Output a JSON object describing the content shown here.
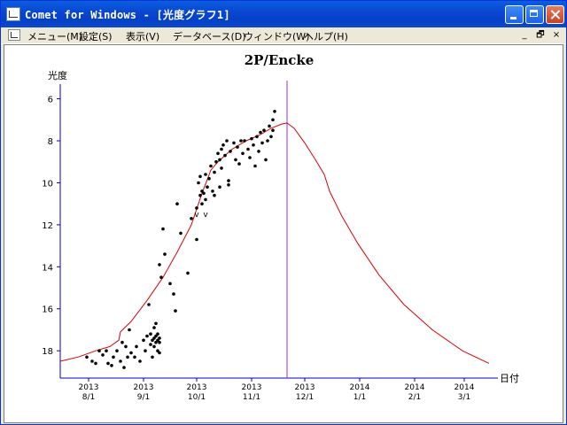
{
  "window": {
    "title": "Comet for Windows - [光度グラフ1]",
    "accent": "#0a47d0"
  },
  "menu": {
    "items": [
      "メニュー(M)",
      "設定(S)",
      "表示(V)",
      "データベース(D)",
      "ウィンドウ(W)",
      "ヘルプ(H)"
    ],
    "mdi_controls": [
      "_",
      "🗗",
      "×"
    ]
  },
  "chart_data": {
    "type": "scatter",
    "title": "2P/Encke",
    "xlabel": "日付",
    "ylabel": "光度",
    "y_reversed": true,
    "ylim": [
      19.3,
      5.3
    ],
    "y_ticks": [
      6,
      8,
      10,
      12,
      14,
      16,
      18
    ],
    "xlim": [
      "2013-07-16",
      "2014-03-20"
    ],
    "x_ticks": [
      {
        "date": "2013-08-01",
        "year": "2013",
        "label": "8/1"
      },
      {
        "date": "2013-09-01",
        "year": "2013",
        "label": "9/1"
      },
      {
        "date": "2013-10-01",
        "year": "2013",
        "label": "10/1"
      },
      {
        "date": "2013-11-01",
        "year": "2013",
        "label": "11/1"
      },
      {
        "date": "2013-12-01",
        "year": "2013",
        "label": "12/1"
      },
      {
        "date": "2014-01-01",
        "year": "2014",
        "label": "1/1"
      },
      {
        "date": "2014-02-01",
        "year": "2014",
        "label": "2/1"
      },
      {
        "date": "2014-03-01",
        "year": "2014",
        "label": "3/1"
      }
    ],
    "marker_line": {
      "date": "2013-11-21",
      "color": "#9933cc"
    },
    "curve_color": "#dd0000",
    "point_color": "#000000",
    "predicted_curve": [
      {
        "x": "2013-07-16",
        "y": 18.5
      },
      {
        "x": "2013-07-26",
        "y": 18.3
      },
      {
        "x": "2013-08-05",
        "y": 18.0
      },
      {
        "x": "2013-08-13",
        "y": 17.8
      },
      {
        "x": "2013-08-18",
        "y": 17.5
      },
      {
        "x": "2013-08-19",
        "y": 17.1
      },
      {
        "x": "2013-08-25",
        "y": 16.6
      },
      {
        "x": "2013-09-03",
        "y": 15.6
      },
      {
        "x": "2013-09-12",
        "y": 14.5
      },
      {
        "x": "2013-09-20",
        "y": 13.3
      },
      {
        "x": "2013-09-28",
        "y": 12.0
      },
      {
        "x": "2013-10-04",
        "y": 10.5
      },
      {
        "x": "2013-10-09",
        "y": 9.4
      },
      {
        "x": "2013-10-13",
        "y": 9.0
      },
      {
        "x": "2013-10-21",
        "y": 8.4
      },
      {
        "x": "2013-10-29",
        "y": 8.0
      },
      {
        "x": "2013-11-06",
        "y": 7.7
      },
      {
        "x": "2013-11-12",
        "y": 7.4
      },
      {
        "x": "2013-11-18",
        "y": 7.2
      },
      {
        "x": "2013-11-21",
        "y": 7.15
      },
      {
        "x": "2013-11-25",
        "y": 7.4
      },
      {
        "x": "2013-12-01",
        "y": 8.1
      },
      {
        "x": "2013-12-07",
        "y": 8.9
      },
      {
        "x": "2013-12-12",
        "y": 9.6
      },
      {
        "x": "2013-12-15",
        "y": 10.4
      },
      {
        "x": "2013-12-22",
        "y": 11.6
      },
      {
        "x": "2013-12-31",
        "y": 12.9
      },
      {
        "x": "2014-01-12",
        "y": 14.4
      },
      {
        "x": "2014-01-26",
        "y": 15.8
      },
      {
        "x": "2014-02-11",
        "y": 17.0
      },
      {
        "x": "2014-02-28",
        "y": 18.0
      },
      {
        "x": "2014-03-15",
        "y": 18.6
      }
    ],
    "annotations": [
      {
        "x": "2013-10-01",
        "y": 11.5,
        "text": "v"
      },
      {
        "x": "2013-10-06",
        "y": 11.5,
        "text": "v"
      }
    ],
    "observations": [
      {
        "x": "2013-07-31",
        "y": 18.3
      },
      {
        "x": "2013-08-03",
        "y": 18.5
      },
      {
        "x": "2013-08-05",
        "y": 18.6
      },
      {
        "x": "2013-08-07",
        "y": 18.0
      },
      {
        "x": "2013-08-09",
        "y": 18.2
      },
      {
        "x": "2013-08-11",
        "y": 18.0
      },
      {
        "x": "2013-08-12",
        "y": 18.6
      },
      {
        "x": "2013-08-14",
        "y": 18.7
      },
      {
        "x": "2013-08-15",
        "y": 18.3
      },
      {
        "x": "2013-08-17",
        "y": 18.0
      },
      {
        "x": "2013-08-19",
        "y": 18.5
      },
      {
        "x": "2013-08-20",
        "y": 17.6
      },
      {
        "x": "2013-08-21",
        "y": 18.8
      },
      {
        "x": "2013-08-22",
        "y": 17.8
      },
      {
        "x": "2013-08-23",
        "y": 18.3
      },
      {
        "x": "2013-08-24",
        "y": 17.0
      },
      {
        "x": "2013-08-25",
        "y": 18.1
      },
      {
        "x": "2013-08-27",
        "y": 18.3
      },
      {
        "x": "2013-08-28",
        "y": 17.8
      },
      {
        "x": "2013-08-30",
        "y": 18.5
      },
      {
        "x": "2013-09-01",
        "y": 17.5
      },
      {
        "x": "2013-09-02",
        "y": 18.0
      },
      {
        "x": "2013-09-03",
        "y": 17.3
      },
      {
        "x": "2013-09-04",
        "y": 15.8
      },
      {
        "x": "2013-09-05",
        "y": 17.7
      },
      {
        "x": "2013-09-05",
        "y": 17.2
      },
      {
        "x": "2013-09-06",
        "y": 17.5
      },
      {
        "x": "2013-09-06",
        "y": 18.3
      },
      {
        "x": "2013-09-07",
        "y": 17.4
      },
      {
        "x": "2013-09-07",
        "y": 16.9
      },
      {
        "x": "2013-09-07",
        "y": 17.8
      },
      {
        "x": "2013-09-08",
        "y": 17.6
      },
      {
        "x": "2013-09-08",
        "y": 17.3
      },
      {
        "x": "2013-09-08",
        "y": 16.7
      },
      {
        "x": "2013-09-09",
        "y": 17.5
      },
      {
        "x": "2013-09-09",
        "y": 18.0
      },
      {
        "x": "2013-09-09",
        "y": 17.2
      },
      {
        "x": "2013-09-10",
        "y": 17.6
      },
      {
        "x": "2013-09-10",
        "y": 18.1
      },
      {
        "x": "2013-09-10",
        "y": 17.4
      },
      {
        "x": "2013-09-10",
        "y": 13.9
      },
      {
        "x": "2013-09-11",
        "y": 14.5
      },
      {
        "x": "2013-09-12",
        "y": 12.2
      },
      {
        "x": "2013-09-13",
        "y": 13.4
      },
      {
        "x": "2013-09-16",
        "y": 14.8
      },
      {
        "x": "2013-09-18",
        "y": 15.3
      },
      {
        "x": "2013-09-19",
        "y": 16.1
      },
      {
        "x": "2013-09-20",
        "y": 11.0
      },
      {
        "x": "2013-09-22",
        "y": 12.4
      },
      {
        "x": "2013-09-26",
        "y": 14.3
      },
      {
        "x": "2013-09-28",
        "y": 11.7
      },
      {
        "x": "2013-10-01",
        "y": 12.7
      },
      {
        "x": "2013-10-01",
        "y": 11.2
      },
      {
        "x": "2013-10-02",
        "y": 10.0
      },
      {
        "x": "2013-10-03",
        "y": 10.6
      },
      {
        "x": "2013-10-03",
        "y": 9.7
      },
      {
        "x": "2013-10-04",
        "y": 10.4
      },
      {
        "x": "2013-10-04",
        "y": 11.0
      },
      {
        "x": "2013-10-05",
        "y": 10.5
      },
      {
        "x": "2013-10-06",
        "y": 9.6
      },
      {
        "x": "2013-10-06",
        "y": 10.8
      },
      {
        "x": "2013-10-07",
        "y": 10.2
      },
      {
        "x": "2013-10-08",
        "y": 9.8
      },
      {
        "x": "2013-10-09",
        "y": 9.2
      },
      {
        "x": "2013-10-10",
        "y": 10.4
      },
      {
        "x": "2013-10-11",
        "y": 9.5
      },
      {
        "x": "2013-10-11",
        "y": 10.6
      },
      {
        "x": "2013-10-12",
        "y": 9.0
      },
      {
        "x": "2013-10-13",
        "y": 8.6
      },
      {
        "x": "2013-10-14",
        "y": 10.2
      },
      {
        "x": "2013-10-14",
        "y": 8.9
      },
      {
        "x": "2013-10-15",
        "y": 8.4
      },
      {
        "x": "2013-10-15",
        "y": 9.3
      },
      {
        "x": "2013-10-16",
        "y": 8.2
      },
      {
        "x": "2013-10-17",
        "y": 8.7
      },
      {
        "x": "2013-10-18",
        "y": 8.0
      },
      {
        "x": "2013-10-19",
        "y": 9.9
      },
      {
        "x": "2013-10-19",
        "y": 10.1
      },
      {
        "x": "2013-10-20",
        "y": 8.5
      },
      {
        "x": "2013-10-22",
        "y": 8.1
      },
      {
        "x": "2013-10-23",
        "y": 8.9
      },
      {
        "x": "2013-10-24",
        "y": 8.3
      },
      {
        "x": "2013-10-25",
        "y": 9.1
      },
      {
        "x": "2013-10-26",
        "y": 8.0
      },
      {
        "x": "2013-10-27",
        "y": 8.6
      },
      {
        "x": "2013-10-28",
        "y": 8.0
      },
      {
        "x": "2013-10-30",
        "y": 8.4
      },
      {
        "x": "2013-10-31",
        "y": 8.8
      },
      {
        "x": "2013-11-01",
        "y": 7.9
      },
      {
        "x": "2013-11-02",
        "y": 8.2
      },
      {
        "x": "2013-11-03",
        "y": 9.2
      },
      {
        "x": "2013-11-04",
        "y": 7.8
      },
      {
        "x": "2013-11-05",
        "y": 8.5
      },
      {
        "x": "2013-11-06",
        "y": 7.6
      },
      {
        "x": "2013-11-07",
        "y": 8.1
      },
      {
        "x": "2013-11-08",
        "y": 7.5
      },
      {
        "x": "2013-11-09",
        "y": 8.9
      },
      {
        "x": "2013-11-10",
        "y": 8.0
      },
      {
        "x": "2013-11-11",
        "y": 7.3
      },
      {
        "x": "2013-11-12",
        "y": 7.8
      },
      {
        "x": "2013-11-13",
        "y": 7.0
      },
      {
        "x": "2013-11-13",
        "y": 7.5
      },
      {
        "x": "2013-11-14",
        "y": 6.6
      }
    ]
  }
}
